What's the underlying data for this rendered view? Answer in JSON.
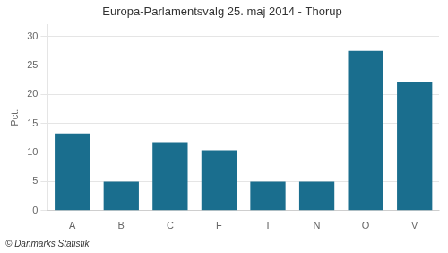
{
  "chart_data": {
    "type": "bar",
    "title": "Europa-Parlamentsvalg 25. maj 2014 - Thorup",
    "ylabel": "Pct.",
    "footer": "© Danmarks Statistik",
    "categories": [
      "A",
      "B",
      "C",
      "F",
      "I",
      "N",
      "O",
      "V"
    ],
    "values": [
      13.3,
      5.0,
      11.8,
      10.4,
      5.0,
      5.0,
      27.5,
      22.2
    ],
    "color": "#1a6e8e",
    "ylim": [
      0,
      32
    ],
    "yticks": [
      0,
      5,
      10,
      15,
      20,
      25,
      30
    ],
    "grid": true
  }
}
